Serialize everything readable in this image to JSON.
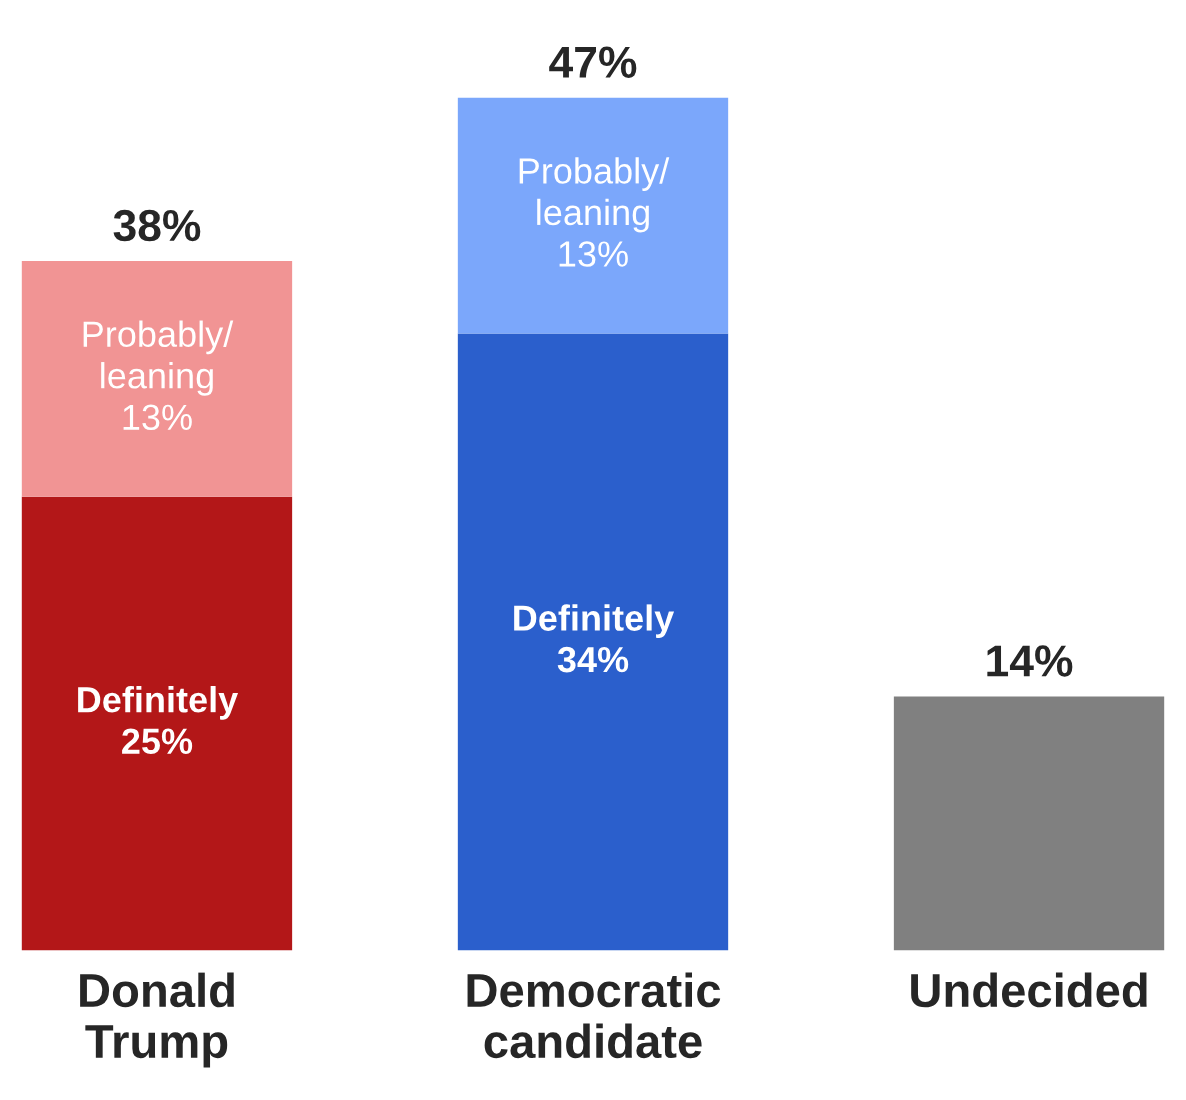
{
  "chart_data": {
    "type": "bar",
    "stacked": true,
    "categories": [
      "Donald\nTrump",
      "Democratic\ncandidate",
      "Undecided"
    ],
    "series": [
      {
        "name": "Definitely",
        "colors": [
          "#b31718",
          "#2b5fcc",
          null
        ],
        "values": [
          25,
          34,
          null
        ],
        "value_labels": [
          "25%",
          "34%",
          null
        ]
      },
      {
        "name": "Probably/\nleaning",
        "colors": [
          "#f19494",
          "#7ba7fb",
          null
        ],
        "values": [
          13,
          13,
          null
        ],
        "value_labels": [
          "13%",
          "13%",
          null
        ]
      },
      {
        "colors": [
          null,
          null,
          "#808080"
        ],
        "values": [
          null,
          null,
          14
        ]
      }
    ],
    "totals": [
      "38%",
      "47%",
      "14%"
    ],
    "grid": false,
    "legend": false
  }
}
